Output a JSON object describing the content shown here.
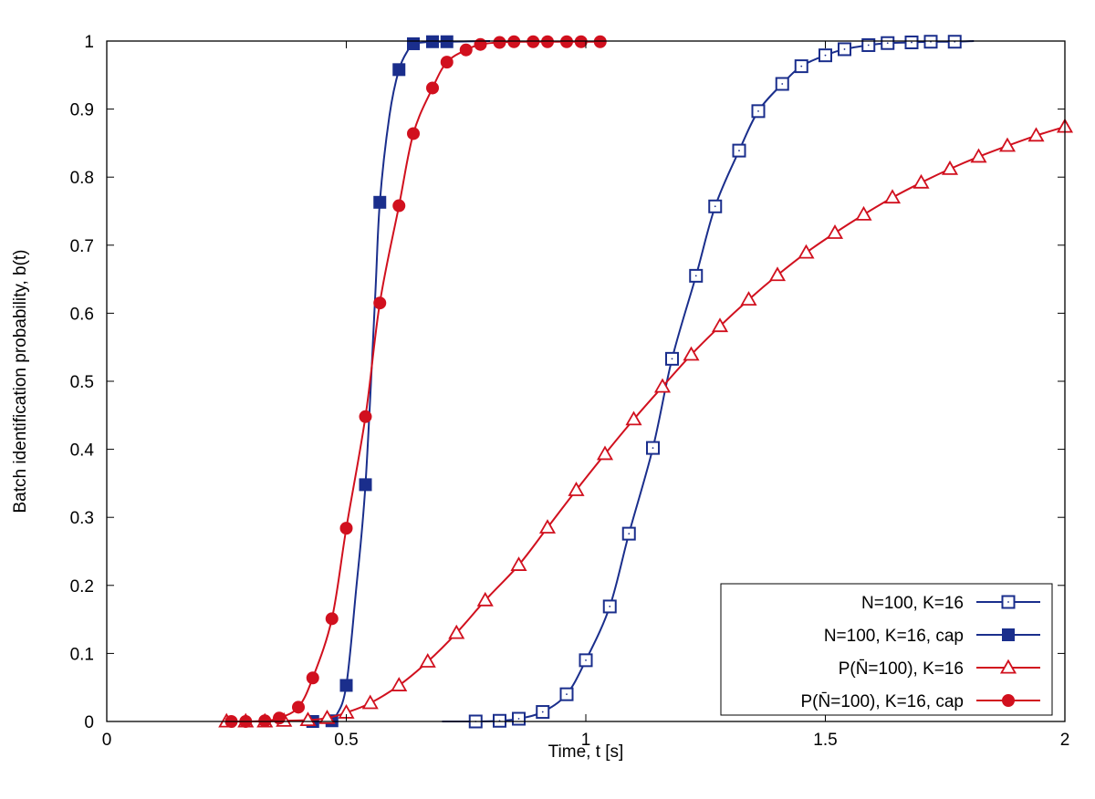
{
  "chart_data": {
    "type": "line",
    "title": "",
    "xlabel": "Time, t [s]",
    "ylabel": "Batch identification probability, b(t)",
    "xlim": [
      0,
      2
    ],
    "ylim": [
      0,
      1
    ],
    "xticks": [
      0,
      0.5,
      1,
      1.5,
      2
    ],
    "yticks": [
      0,
      0.1,
      0.2,
      0.3,
      0.4,
      0.5,
      0.6,
      0.7,
      0.8,
      0.9,
      1
    ],
    "xtick_labels": [
      "0",
      "0.5",
      "1",
      "1.5",
      "2"
    ],
    "ytick_labels": [
      "0",
      "0.1",
      "0.2",
      "0.3",
      "0.4",
      "0.5",
      "0.6",
      "0.7",
      "0.8",
      "0.9",
      "1"
    ],
    "grid": false,
    "legend_position": "bottom-right",
    "series": [
      {
        "name": "N=100, K=16",
        "color": "#1a2e8c",
        "marker": "square-open",
        "x": [
          0.77,
          0.82,
          0.86,
          0.91,
          0.96,
          1.0,
          1.05,
          1.09,
          1.14,
          1.18,
          1.23,
          1.27,
          1.32,
          1.36,
          1.41,
          1.45,
          1.5,
          1.54,
          1.59,
          1.63,
          1.68,
          1.72,
          1.77
        ],
        "y": [
          0.0,
          0.001,
          0.004,
          0.014,
          0.04,
          0.09,
          0.169,
          0.276,
          0.402,
          0.533,
          0.655,
          0.757,
          0.839,
          0.897,
          0.937,
          0.963,
          0.979,
          0.988,
          0.994,
          0.997,
          0.998,
          0.999,
          0.999
        ],
        "curve_x": [
          0.7,
          0.77,
          0.82,
          0.86,
          0.91,
          0.96,
          1.0,
          1.05,
          1.09,
          1.14,
          1.18,
          1.23,
          1.27,
          1.32,
          1.36,
          1.41,
          1.45,
          1.5,
          1.54,
          1.59,
          1.63,
          1.68,
          1.72,
          1.77,
          1.81
        ],
        "curve_y": [
          0.0,
          0.0,
          0.001,
          0.004,
          0.014,
          0.04,
          0.09,
          0.169,
          0.276,
          0.402,
          0.533,
          0.655,
          0.757,
          0.839,
          0.897,
          0.937,
          0.963,
          0.979,
          0.988,
          0.994,
          0.997,
          0.998,
          0.999,
          0.999,
          1.0
        ]
      },
      {
        "name": "N=100, K=16, cap",
        "color": "#1a2e8c",
        "marker": "square-filled",
        "x": [
          0.43,
          0.47,
          0.5,
          0.54,
          0.57,
          0.61,
          0.64,
          0.68,
          0.71
        ],
        "y": [
          0.0,
          0.001,
          0.053,
          0.348,
          0.763,
          0.958,
          0.996,
          0.999,
          0.999
        ],
        "curve_x": [
          0.43,
          0.46,
          0.48,
          0.5,
          0.52,
          0.54,
          0.56,
          0.57,
          0.59,
          0.61,
          0.63,
          0.64,
          0.66,
          0.68,
          0.71,
          0.8
        ],
        "curve_y": [
          0.0,
          0.0,
          0.01,
          0.053,
          0.19,
          0.348,
          0.62,
          0.763,
          0.89,
          0.958,
          0.988,
          0.996,
          0.998,
          0.999,
          0.999,
          1.0
        ]
      },
      {
        "name": "P(N̄=100), K=16",
        "color": "#d1101e",
        "marker": "triangle-open",
        "x": [
          0.25,
          0.29,
          0.33,
          0.37,
          0.42,
          0.46,
          0.5,
          0.55,
          0.61,
          0.67,
          0.73,
          0.79,
          0.86,
          0.92,
          0.98,
          1.04,
          1.1,
          1.16,
          1.22,
          1.28,
          1.34,
          1.4,
          1.46,
          1.52,
          1.58,
          1.64,
          1.7,
          1.76,
          1.82,
          1.88,
          1.94,
          2.0
        ],
        "y": [
          0.0,
          0.0,
          0.0,
          0.001,
          0.002,
          0.005,
          0.013,
          0.027,
          0.053,
          0.088,
          0.13,
          0.178,
          0.23,
          0.285,
          0.34,
          0.393,
          0.444,
          0.492,
          0.539,
          0.581,
          0.62,
          0.656,
          0.689,
          0.718,
          0.745,
          0.77,
          0.792,
          0.812,
          0.83,
          0.846,
          0.861,
          0.874
        ],
        "curve_x": [
          0.25,
          0.29,
          0.33,
          0.37,
          0.42,
          0.46,
          0.5,
          0.55,
          0.61,
          0.67,
          0.73,
          0.79,
          0.86,
          0.92,
          0.98,
          1.04,
          1.1,
          1.16,
          1.22,
          1.28,
          1.34,
          1.4,
          1.46,
          1.52,
          1.58,
          1.64,
          1.7,
          1.76,
          1.82,
          1.88,
          1.94,
          2.0
        ],
        "curve_y": [
          0.0,
          0.0,
          0.0,
          0.001,
          0.002,
          0.005,
          0.013,
          0.027,
          0.053,
          0.088,
          0.13,
          0.178,
          0.23,
          0.285,
          0.34,
          0.393,
          0.444,
          0.492,
          0.539,
          0.581,
          0.62,
          0.656,
          0.689,
          0.718,
          0.745,
          0.77,
          0.792,
          0.812,
          0.83,
          0.846,
          0.861,
          0.874
        ]
      },
      {
        "name": "P(N̄=100), K=16, cap",
        "color": "#d1101e",
        "marker": "circle-filled",
        "x": [
          0.26,
          0.29,
          0.33,
          0.36,
          0.4,
          0.43,
          0.47,
          0.5,
          0.54,
          0.57,
          0.61,
          0.64,
          0.68,
          0.71,
          0.75,
          0.78,
          0.82,
          0.85,
          0.89,
          0.92,
          0.96,
          0.99,
          1.03
        ],
        "y": [
          0.0,
          0.0,
          0.001,
          0.005,
          0.021,
          0.064,
          0.151,
          0.284,
          0.448,
          0.615,
          0.758,
          0.864,
          0.931,
          0.969,
          0.987,
          0.995,
          0.998,
          0.999,
          0.999,
          0.999,
          0.999,
          0.999,
          0.999
        ],
        "curve_x": [
          0.26,
          0.29,
          0.33,
          0.36,
          0.4,
          0.43,
          0.47,
          0.5,
          0.54,
          0.57,
          0.61,
          0.64,
          0.68,
          0.71,
          0.75,
          0.78,
          0.82,
          0.85,
          0.89,
          0.92,
          0.96,
          0.99,
          1.03
        ],
        "curve_y": [
          0.0,
          0.0,
          0.001,
          0.005,
          0.021,
          0.064,
          0.151,
          0.284,
          0.448,
          0.615,
          0.758,
          0.864,
          0.931,
          0.969,
          0.987,
          0.995,
          0.998,
          0.999,
          0.999,
          0.999,
          0.999,
          0.999,
          0.999
        ]
      }
    ]
  }
}
